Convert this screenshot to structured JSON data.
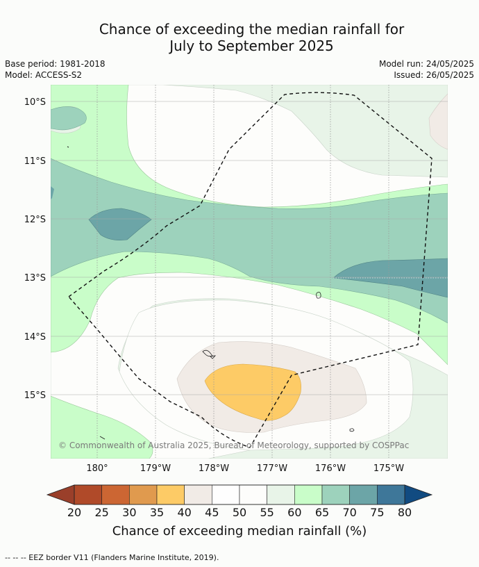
{
  "title": {
    "line1": "Chance of exceeding the median rainfall for",
    "line2": "July to September 2025"
  },
  "meta": {
    "base_period": "Base period: 1981-2018",
    "model": "Model: ACCESS-S2",
    "model_run": "Model run: 24/05/2025",
    "issued": "Issued: 26/05/2025"
  },
  "map": {
    "lat_labels": [
      "10°S",
      "11°S",
      "12°S",
      "13°S",
      "14°S",
      "15°S"
    ],
    "lon_labels": [
      "180°",
      "179°W",
      "178°W",
      "177°W",
      "176°W",
      "175°W"
    ],
    "copyright": "© Commonwealth of Australia 2025, Bureau of Meteorology, supported by COSPPac"
  },
  "colorbar": {
    "ticks": [
      "20",
      "25",
      "30",
      "35",
      "40",
      "45",
      "50",
      "55",
      "60",
      "65",
      "70",
      "75",
      "80"
    ],
    "colors": [
      "#b04a29",
      "#cc6633",
      "#e09a4e",
      "#fdcb66",
      "#f1ebe6",
      "#fefefe",
      "#fdfdfb",
      "#e8f4e8",
      "#c9fdc9",
      "#9dd2bc",
      "#6ca5a7",
      "#3e7799"
    ],
    "under_color": "#9a3f2a",
    "over_color": "#114b81",
    "label": "Chance of exceeding median rainfall (%)"
  },
  "footnote": "--  --  -- EEZ border V11 (Flanders Marine Institute, 2019)."
}
